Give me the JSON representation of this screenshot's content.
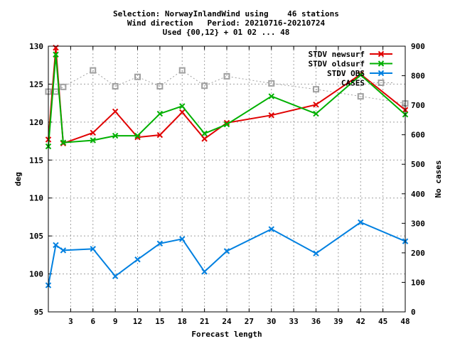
{
  "header": {
    "line1": "Selection: NorwayInlandWind using    46 stations",
    "line2": "Wind direction   Period: 20210716-20210724",
    "line3": "Used {00,12} + 01 02 ... 48"
  },
  "chart_data": {
    "type": "line",
    "xlabel": "Forecast length",
    "ylabel": "deg",
    "y2label": "No cases",
    "xlim": [
      0,
      48
    ],
    "ylim": [
      95,
      130
    ],
    "y2lim": [
      0,
      900
    ],
    "xticks": [
      3,
      6,
      9,
      12,
      15,
      18,
      21,
      24,
      27,
      30,
      33,
      36,
      39,
      42,
      45,
      48
    ],
    "yticks": [
      95,
      100,
      105,
      110,
      115,
      120,
      125,
      130
    ],
    "y2ticks": [
      0,
      100,
      200,
      300,
      400,
      500,
      600,
      700,
      800,
      900
    ],
    "grid": true,
    "legend_position": "top-right",
    "series": [
      {
        "name": "STDV newsurf",
        "axis": "left",
        "color": "#e00000",
        "marker": "x",
        "x": [
          0,
          1,
          2,
          6,
          9,
          12,
          15,
          18,
          21,
          24,
          30,
          36,
          42,
          48
        ],
        "y": [
          117.7,
          129.8,
          117.2,
          118.6,
          121.4,
          118.0,
          118.3,
          121.3,
          117.8,
          119.9,
          120.9,
          122.3,
          126.3,
          121.6
        ]
      },
      {
        "name": "STDV oldsurf",
        "axis": "left",
        "color": "#00b000",
        "marker": "x",
        "x": [
          0,
          1,
          2,
          6,
          9,
          12,
          15,
          18,
          21,
          24,
          30,
          36,
          42,
          48
        ],
        "y": [
          116.8,
          128.9,
          117.3,
          117.6,
          118.2,
          118.2,
          121.1,
          122.1,
          118.5,
          119.7,
          123.4,
          121.1,
          126.2,
          121.0
        ]
      },
      {
        "name": "STDV OBS",
        "axis": "left",
        "color": "#0080e0",
        "marker": "x",
        "x": [
          0,
          1,
          2,
          6,
          9,
          12,
          15,
          18,
          21,
          24,
          30,
          36,
          42,
          48
        ],
        "y": [
          98.5,
          103.8,
          103.1,
          103.3,
          99.7,
          101.9,
          104.0,
          104.6,
          100.3,
          103.0,
          105.9,
          102.7,
          106.8,
          104.3
        ]
      },
      {
        "name": "CASES",
        "axis": "right",
        "color": "#a0a0a0",
        "marker": "square",
        "dashed": true,
        "x": [
          0,
          1,
          2,
          6,
          9,
          12,
          15,
          18,
          21,
          24,
          30,
          36,
          42,
          48
        ],
        "y": [
          746,
          746,
          762,
          818,
          764,
          796,
          764,
          818,
          766,
          798,
          774,
          754,
          730,
          706
        ]
      }
    ]
  }
}
